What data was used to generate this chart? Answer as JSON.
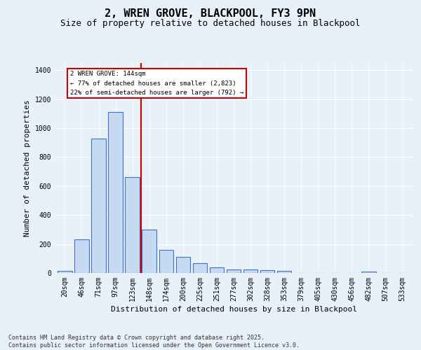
{
  "title": "2, WREN GROVE, BLACKPOOL, FY3 9PN",
  "subtitle": "Size of property relative to detached houses in Blackpool",
  "xlabel": "Distribution of detached houses by size in Blackpool",
  "ylabel": "Number of detached properties",
  "footnote": "Contains HM Land Registry data © Crown copyright and database right 2025.\nContains public sector information licensed under the Open Government Licence v3.0.",
  "categories": [
    "20sqm",
    "46sqm",
    "71sqm",
    "97sqm",
    "123sqm",
    "148sqm",
    "174sqm",
    "200sqm",
    "225sqm",
    "251sqm",
    "277sqm",
    "302sqm",
    "328sqm",
    "353sqm",
    "379sqm",
    "405sqm",
    "430sqm",
    "456sqm",
    "482sqm",
    "507sqm",
    "533sqm"
  ],
  "values": [
    15,
    230,
    930,
    1110,
    660,
    300,
    160,
    110,
    70,
    40,
    25,
    25,
    20,
    15,
    0,
    0,
    0,
    0,
    10,
    0,
    0
  ],
  "bar_color": "#c5d9f1",
  "bar_edge_color": "#4472c4",
  "vline_color": "#cc0000",
  "annotation_text": "2 WREN GROVE: 144sqm\n← 77% of detached houses are smaller (2,823)\n22% of semi-detached houses are larger (792) →",
  "annotation_box_color": "#cc0000",
  "annotation_box_fill": "#ffffff",
  "ylim": [
    0,
    1450
  ],
  "yticks": [
    0,
    200,
    400,
    600,
    800,
    1000,
    1200,
    1400
  ],
  "background_color": "#e8f0f8",
  "plot_background_color": "#e8f0f8",
  "grid_color": "#ffffff",
  "title_fontsize": 11,
  "subtitle_fontsize": 9,
  "label_fontsize": 8,
  "tick_fontsize": 7,
  "footnote_fontsize": 6
}
